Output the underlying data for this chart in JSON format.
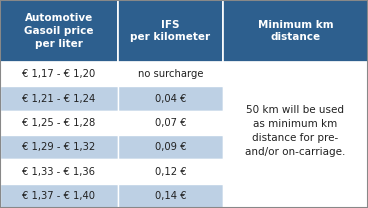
{
  "header_bg": "#2D5F8E",
  "header_text_color": "#FFFFFF",
  "row_bg_light": "#BDD0E4",
  "row_bg_white": "#FFFFFF",
  "cell_border_color": "#FFFFFF",
  "outer_border_color": "#888888",
  "col1_header": "Automotive\nGasoil price\nper liter",
  "col2_header": "IFS\nper kilometer",
  "col3_header": "Minimum km\ndistance",
  "rows": [
    [
      "€ 1,17 - € 1,20",
      "no surcharge"
    ],
    [
      "€ 1,21 - € 1,24",
      "0,04 €"
    ],
    [
      "€ 1,25 - € 1,28",
      "0,07 €"
    ],
    [
      "€ 1,29 - € 1,32",
      "0,09 €"
    ],
    [
      "€ 1,33 - € 1,36",
      "0,12 €"
    ],
    [
      "€ 1,37 - € 1,40",
      "0,14 €"
    ]
  ],
  "row_colors": [
    "#FFFFFF",
    "#BDD0E4",
    "#FFFFFF",
    "#BDD0E4",
    "#FFFFFF",
    "#BDD0E4"
  ],
  "note_text": "50 km will be used\nas minimum km\ndistance for pre-\nand/or on-carriage.",
  "figsize": [
    3.68,
    2.08
  ],
  "dpi": 100
}
